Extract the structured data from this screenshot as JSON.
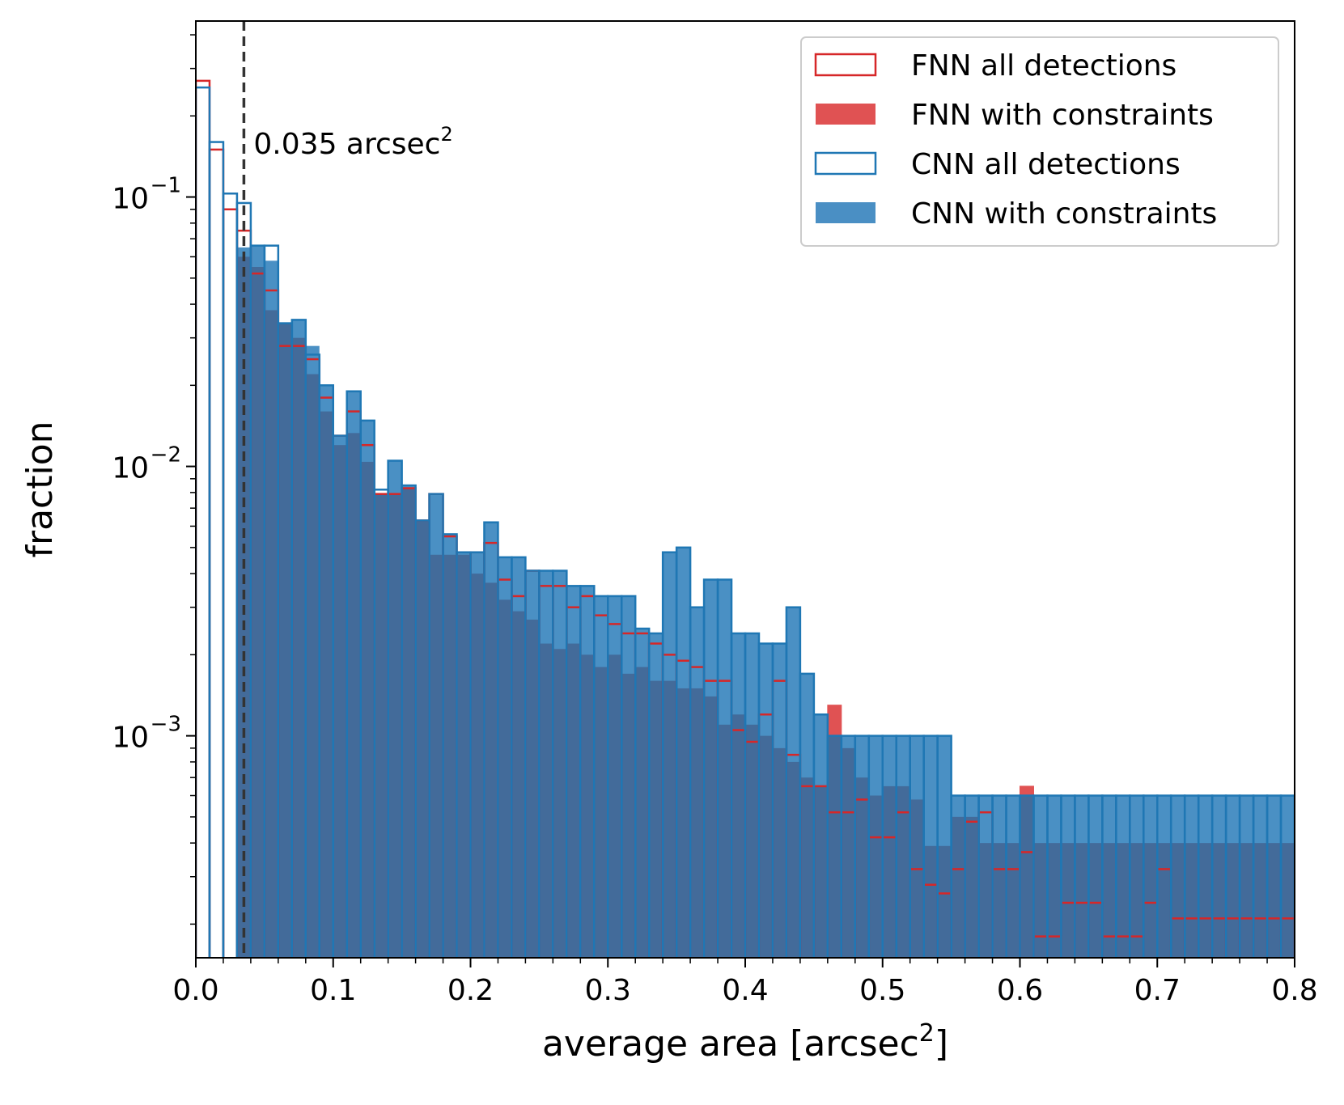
{
  "chart_data": {
    "type": "histogram",
    "title": "",
    "xlabel": {
      "text": "average area [arcsec",
      "sup": "2",
      "suffix": "]"
    },
    "ylabel": "fraction",
    "xlim": [
      0.0,
      0.8
    ],
    "ylim": [
      0.00015,
      0.45
    ],
    "yscale": "log",
    "bin_width": 0.01,
    "x_ticks": [
      0.0,
      0.1,
      0.2,
      0.3,
      0.4,
      0.5,
      0.6,
      0.7,
      0.8
    ],
    "x_tick_labels": [
      "0.0",
      "0.1",
      "0.2",
      "0.3",
      "0.4",
      "0.5",
      "0.6",
      "0.7",
      "0.8"
    ],
    "y_ticks": [
      0.1,
      0.01,
      0.001
    ],
    "y_tick_labels": [
      {
        "base": "10",
        "exp": "−1"
      },
      {
        "base": "10",
        "exp": "−2"
      },
      {
        "base": "10",
        "exp": "−3"
      }
    ],
    "threshold": {
      "x": 0.035,
      "text": "0.035 arcsec",
      "sup": "2"
    },
    "legend": {
      "position": "top-right",
      "entries": [
        {
          "key": "fnn_all",
          "label": "FNN all detections",
          "style": "outline",
          "color": "#d62728"
        },
        {
          "key": "fnn_con",
          "label": "FNN with constraints",
          "style": "filled",
          "color": "#e05253"
        },
        {
          "key": "cnn_all",
          "label": "CNN all detections",
          "style": "outline",
          "color": "#1f77b4"
        },
        {
          "key": "cnn_con",
          "label": "CNN with constraints",
          "style": "filled",
          "color": "#4a8fc4"
        }
      ]
    },
    "colors": {
      "fnn_edge": "#d62728",
      "fnn_fill": "#e05253",
      "cnn_edge": "#1f77b4",
      "cnn_fill": "#4a90c4",
      "overlap_fill": "#436b9a",
      "threshold_line": "#333333"
    },
    "series": [
      {
        "name": "FNN all detections",
        "key": "fnn_all",
        "values": [
          0.27,
          0.15,
          0.09,
          0.075,
          0.052,
          0.045,
          0.028,
          0.028,
          0.025,
          0.018,
          0.013,
          0.016,
          0.012,
          0.0079,
          0.0079,
          0.0083,
          0.0063,
          0.0079,
          0.0055,
          0.0048,
          0.0048,
          0.0052,
          0.0038,
          0.0033,
          0.0041,
          0.0036,
          0.0036,
          0.003,
          0.0033,
          0.0028,
          0.0026,
          0.0024,
          0.0024,
          0.0022,
          0.002,
          0.0019,
          0.0018,
          0.0016,
          0.0016,
          0.00105,
          0.00095,
          0.0012,
          0.0016,
          0.00085,
          0.00065,
          0.00065,
          0.00052,
          0.00052,
          0.00058,
          0.00042,
          0.00042,
          0.00052,
          0.00032,
          0.00028,
          0.00026,
          0.00032,
          0.00048,
          0.00052,
          0.00032,
          0.00032,
          0.00037,
          0.00018,
          0.00018,
          0.00024,
          0.00024,
          0.00024,
          0.00018,
          0.00018,
          0.00018,
          0.00024,
          0.00032,
          0.00021,
          0.00021,
          0.00021,
          0.00021,
          0.00021,
          0.00021,
          0.00021,
          0.00021,
          0.00021
        ]
      },
      {
        "name": "FNN with constraints",
        "key": "fnn_con",
        "values": [
          0,
          0,
          0,
          0.06,
          0.055,
          0.038,
          0.034,
          0.03,
          0.022,
          0.016,
          0.012,
          0.0133,
          0.0104,
          0.0079,
          0.0079,
          0.0083,
          0.0063,
          0.0047,
          0.0047,
          0.0047,
          0.004,
          0.0037,
          0.0032,
          0.0029,
          0.0027,
          0.0022,
          0.0021,
          0.0022,
          0.002,
          0.0018,
          0.002,
          0.0017,
          0.0018,
          0.0016,
          0.0016,
          0.0015,
          0.0015,
          0.0014,
          0.0011,
          0.0012,
          0.0011,
          0.001,
          0.0009,
          0.0008,
          0.0007,
          0.00065,
          0.0013,
          0.0009,
          0.0007,
          0.0006,
          0.00065,
          0.00065,
          0.00058,
          0.00039,
          0.00039,
          0.0005,
          0.0005,
          0.0004,
          0.0004,
          0.0004,
          0.00065,
          0.0004,
          0.0004,
          0.0004,
          0.0004,
          0.0004,
          0.0004,
          0.0004,
          0.0004,
          0.0004,
          0.0004,
          0.0004,
          0.0004,
          0.0004,
          0.0004,
          0.0004,
          0.0004,
          0.0004,
          0.0004,
          0.0004
        ]
      },
      {
        "name": "CNN all detections",
        "key": "cnn_all",
        "values": [
          0.255,
          0.16,
          0.103,
          0.095,
          0.066,
          0.066,
          0.034,
          0.035,
          0.026,
          0.02,
          0.013,
          0.019,
          0.0148,
          0.0082,
          0.0105,
          0.0085,
          0.0063,
          0.0079,
          0.0056,
          0.0048,
          0.0048,
          0.0062,
          0.0046,
          0.0046,
          0.0041,
          0.0041,
          0.0041,
          0.0036,
          0.0036,
          0.0033,
          0.0033,
          0.0033,
          0.0025,
          0.0024,
          0.0048,
          0.005,
          0.003,
          0.0038,
          0.0038,
          0.0024,
          0.0024,
          0.0022,
          0.0022,
          0.003,
          0.0017,
          0.0012,
          0.001,
          0.001,
          0.001,
          0.001,
          0.001,
          0.001,
          0.001,
          0.001,
          0.001,
          0.0006,
          0.0006,
          0.0006,
          0.0006,
          0.0006,
          0.0006,
          0.0006,
          0.0006,
          0.0006,
          0.0006,
          0.0006,
          0.0006,
          0.0006,
          0.0006,
          0.0006,
          0.0006,
          0.0006,
          0.0006,
          0.0006,
          0.0006,
          0.0006,
          0.0006,
          0.0006,
          0.0006,
          0.0006
        ]
      },
      {
        "name": "CNN with constraints",
        "key": "cnn_con",
        "values": [
          0,
          0,
          0,
          0.065,
          0.066,
          0.058,
          0.034,
          0.035,
          0.028,
          0.02,
          0.013,
          0.019,
          0.0148,
          0.0079,
          0.0105,
          0.0085,
          0.0063,
          0.0079,
          0.0056,
          0.0048,
          0.0048,
          0.0062,
          0.0046,
          0.0046,
          0.0041,
          0.0041,
          0.0041,
          0.0036,
          0.0036,
          0.0033,
          0.0033,
          0.0033,
          0.0025,
          0.0024,
          0.0048,
          0.005,
          0.003,
          0.0038,
          0.0038,
          0.0024,
          0.0024,
          0.0022,
          0.0022,
          0.003,
          0.0017,
          0.0012,
          0.001,
          0.001,
          0.001,
          0.001,
          0.001,
          0.001,
          0.001,
          0.001,
          0.001,
          0.0006,
          0.0006,
          0.0006,
          0.0006,
          0.0006,
          0.0006,
          0.0006,
          0.0006,
          0.0006,
          0.0006,
          0.0006,
          0.0006,
          0.0006,
          0.0006,
          0.0006,
          0.0006,
          0.0006,
          0.0006,
          0.0006,
          0.0006,
          0.0006,
          0.0006,
          0.0006,
          0.0006,
          0.0006
        ]
      }
    ]
  }
}
